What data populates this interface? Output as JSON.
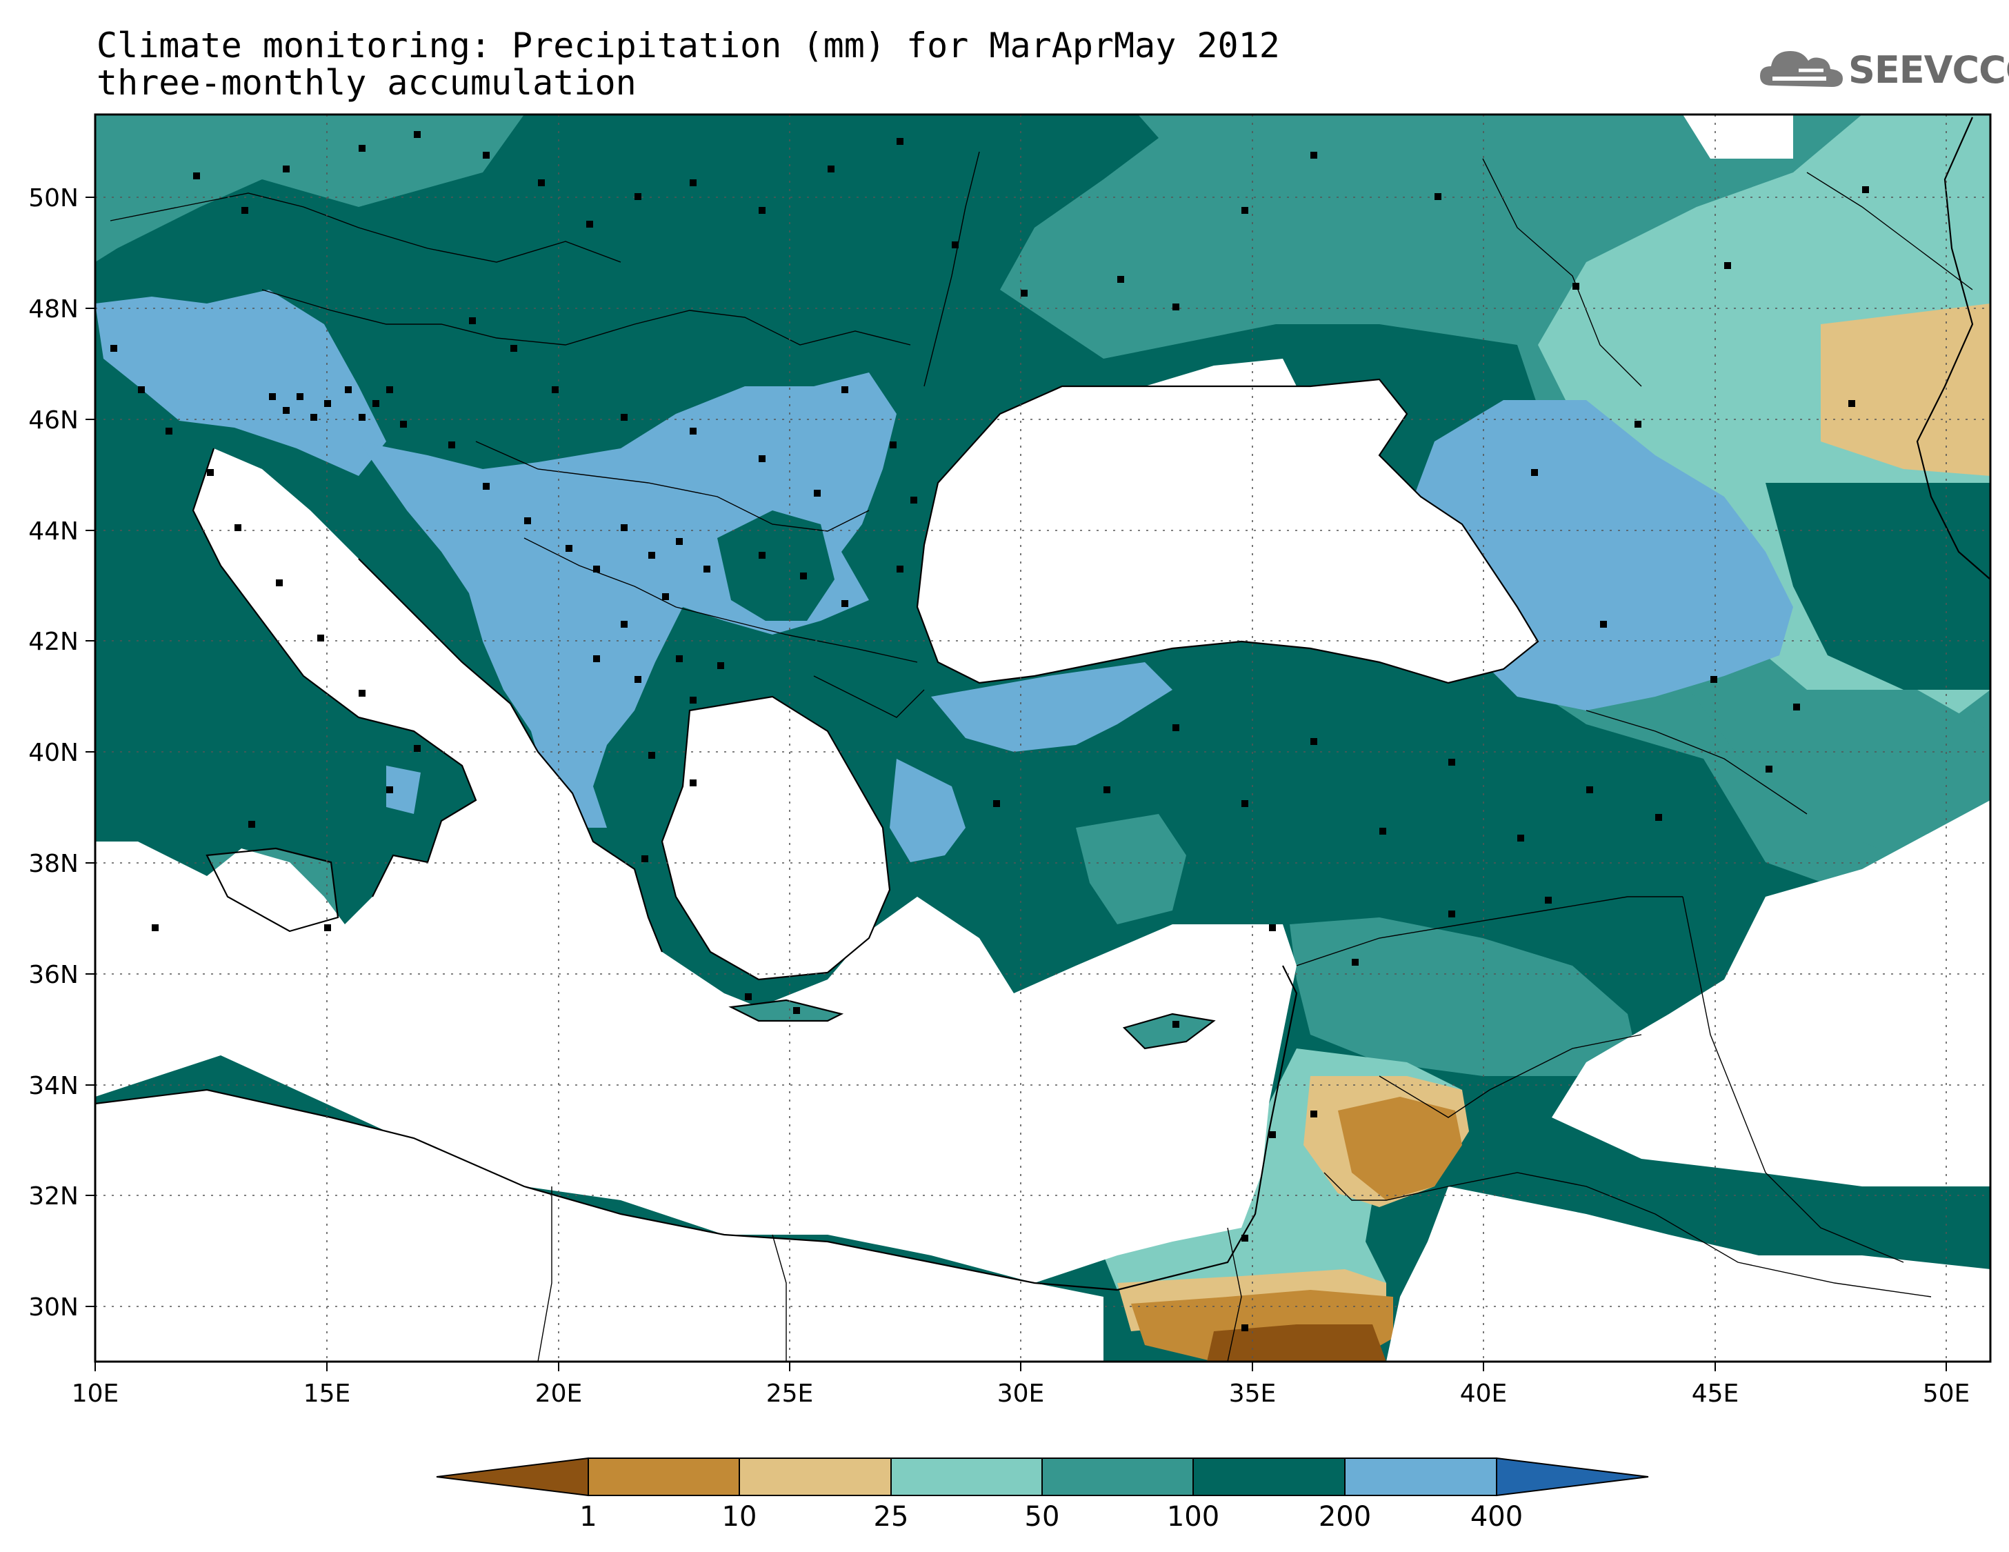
{
  "title": {
    "line1": "Climate monitoring: Precipitation (mm) for MarAprMay 2012",
    "line2": "three-monthly accumulation"
  },
  "logo": {
    "text": "SEEVCCC",
    "icon": "cloud-icon"
  },
  "map": {
    "lon_range": [
      10,
      51
    ],
    "lat_range": [
      29,
      51.5
    ],
    "lon_ticks": [
      "10E",
      "15E",
      "20E",
      "25E",
      "30E",
      "35E",
      "40E",
      "45E",
      "50E"
    ],
    "lat_ticks": [
      "30N",
      "32N",
      "34N",
      "36N",
      "38N",
      "40N",
      "42N",
      "44N",
      "46N",
      "48N",
      "50N"
    ],
    "grid": true,
    "stations_shown": true
  },
  "colorbar": {
    "labels": [
      "1",
      "10",
      "25",
      "50",
      "100",
      "200",
      "400"
    ],
    "colors": [
      "#8c5212",
      "#c28a36",
      "#e1c283",
      "#80cdc1",
      "#36978f",
      "#01665e",
      "#6baed6",
      "#2166ac"
    ]
  }
}
